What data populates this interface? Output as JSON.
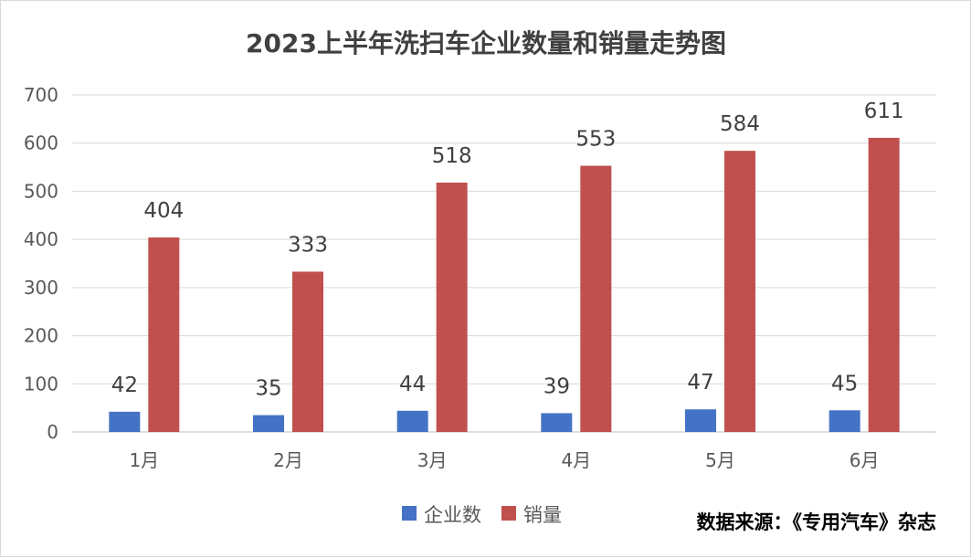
{
  "chart_data": {
    "type": "bar",
    "title": "2023上半年洗扫车企业数量和销量走势图",
    "categories": [
      "1月",
      "2月",
      "3月",
      "4月",
      "5月",
      "6月"
    ],
    "series": [
      {
        "name": "企业数",
        "values": [
          42,
          35,
          44,
          39,
          47,
          45
        ],
        "color": "#4472c4"
      },
      {
        "name": "销量",
        "values": [
          404,
          333,
          518,
          553,
          584,
          611
        ],
        "color": "#c0504d"
      }
    ],
    "xlabel": "",
    "ylabel": "",
    "ylim": [
      0,
      700
    ],
    "yticks": [
      "0",
      "100",
      "200",
      "300",
      "400",
      "500",
      "600",
      "700"
    ],
    "grid": true,
    "legend_position": "bottom-center",
    "source_note": "数据来源：《专用汽车》杂志"
  }
}
